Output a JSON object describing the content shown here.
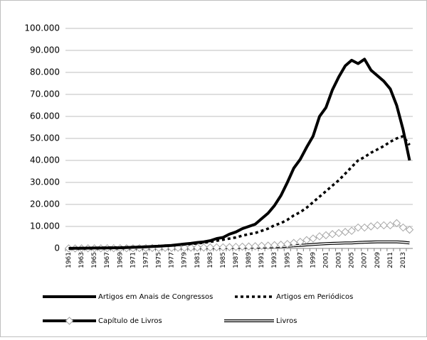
{
  "chart_data": {
    "type": "line",
    "categories": [
      "1961",
      null,
      "1963",
      null,
      "1965",
      null,
      "1967",
      null,
      "1969",
      null,
      "1971",
      null,
      "1973",
      null,
      "1975",
      null,
      "1977",
      null,
      "1979",
      null,
      "1981",
      null,
      "1983",
      null,
      "1985",
      null,
      "1987",
      null,
      "1989",
      null,
      "1991",
      null,
      "1993",
      null,
      "1995",
      null,
      "1997",
      null,
      "1999",
      null,
      "2001",
      null,
      "2003",
      null,
      "2005",
      null,
      "2007",
      null,
      "2009",
      null,
      "2011",
      null,
      "2013",
      null
    ],
    "series": [
      {
        "name": "Artigos em Anais de Congressos",
        "color": "#000000",
        "style": "solid",
        "values": [
          0,
          100,
          100,
          150,
          200,
          200,
          250,
          300,
          300,
          400,
          500,
          600,
          700,
          900,
          1000,
          1200,
          1400,
          1700,
          2000,
          2300,
          2700,
          3000,
          3500,
          4500,
          5000,
          6500,
          7500,
          9000,
          10000,
          11000,
          13500,
          16000,
          19500,
          24000,
          30000,
          36500,
          40500,
          46000,
          51000,
          60000,
          64000,
          72000,
          78000,
          83000,
          85500,
          84000,
          86000,
          81000,
          78500,
          76000,
          72500,
          65000,
          54000,
          40000
        ]
      },
      {
        "name": "Artigos em Periódicos",
        "color": "#000000",
        "style": "dotted",
        "values": [
          100,
          150,
          200,
          200,
          250,
          300,
          350,
          400,
          450,
          500,
          600,
          700,
          800,
          900,
          1000,
          1200,
          1400,
          1600,
          1800,
          2000,
          2300,
          2600,
          3000,
          3500,
          4000,
          4500,
          5000,
          5800,
          6500,
          7000,
          8000,
          9000,
          10500,
          11500,
          13000,
          15000,
          16500,
          18500,
          21000,
          23500,
          26000,
          28500,
          31000,
          34000,
          37000,
          40000,
          41500,
          43500,
          45000,
          46500,
          48500,
          50000,
          51000,
          47000
        ]
      },
      {
        "name": "Capítulo de Livros",
        "color": "#000000",
        "style": "diamond",
        "marker_stroke": "#a6a6a6",
        "values": [
          0,
          0,
          50,
          50,
          50,
          50,
          100,
          100,
          100,
          100,
          100,
          150,
          150,
          200,
          200,
          250,
          250,
          300,
          300,
          350,
          400,
          400,
          450,
          500,
          500,
          600,
          700,
          800,
          900,
          1000,
          1200,
          1300,
          1500,
          1700,
          2000,
          2500,
          3000,
          3800,
          4500,
          5500,
          6000,
          6500,
          7000,
          7500,
          8000,
          9500,
          9500,
          10000,
          10500,
          10500,
          10500,
          11500,
          9500,
          8500
        ]
      },
      {
        "name": "Livros",
        "color": "#000000",
        "style": "double",
        "values": [
          0,
          0,
          0,
          0,
          50,
          50,
          50,
          50,
          50,
          100,
          100,
          100,
          100,
          150,
          150,
          150,
          200,
          200,
          200,
          250,
          250,
          300,
          300,
          300,
          350,
          400,
          400,
          450,
          500,
          500,
          600,
          700,
          800,
          900,
          1000,
          1200,
          1400,
          1600,
          1800,
          2000,
          2200,
          2300,
          2400,
          2500,
          2500,
          2700,
          2800,
          2900,
          3000,
          3000,
          3000,
          3000,
          2800,
          2500
        ]
      }
    ],
    "ylim": [
      0,
      100000
    ],
    "yticks": [
      0,
      {
        "value": 10000,
        "label": "10.000"
      },
      {
        "value": 20000,
        "label": "20.000"
      },
      {
        "value": 30000,
        "label": "30.000"
      },
      {
        "value": 40000,
        "label": "40.000"
      },
      {
        "value": 50000,
        "label": "50.000"
      },
      {
        "value": 60000,
        "label": "60.000"
      },
      {
        "value": 70000,
        "label": "70.000"
      },
      {
        "value": 80000,
        "label": "80.000"
      },
      {
        "value": 90000,
        "label": "90.000"
      },
      {
        "value": 100000,
        "label": "100.000"
      }
    ],
    "grid": true,
    "legend": "bottom"
  }
}
